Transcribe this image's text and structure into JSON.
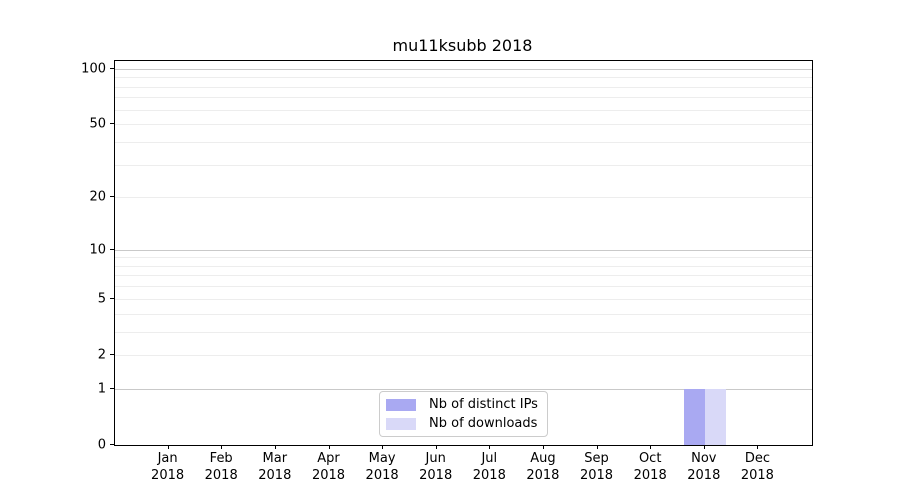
{
  "title": "mu11ksubb 2018",
  "colors": {
    "distinct_ips_bar": "#a9a9f2",
    "downloads_bar": "#d9d9f8",
    "grid_major": "#c9c9c9",
    "grid_minor": "#ededed",
    "spine": "#000000",
    "legend_border": "#cccccc",
    "text": "#000000",
    "background": "#ffffff"
  },
  "legend": {
    "items": [
      {
        "label": "Nb of distinct IPs",
        "color": "#a9a9f2"
      },
      {
        "label": "Nb of downloads",
        "color": "#d9d9f8"
      }
    ],
    "position": "lower center"
  },
  "chart_data": {
    "type": "bar",
    "title": "mu11ksubb 2018",
    "categories": [
      "Jan 2018",
      "Feb 2018",
      "Mar 2018",
      "Apr 2018",
      "May 2018",
      "Jun 2018",
      "Jul 2018",
      "Aug 2018",
      "Sep 2018",
      "Oct 2018",
      "Nov 2018",
      "Dec 2018"
    ],
    "series": [
      {
        "name": "Nb of distinct IPs",
        "color": "#a9a9f2",
        "values": [
          0,
          0,
          0,
          0,
          0,
          0,
          0,
          0,
          0,
          0,
          1,
          0
        ]
      },
      {
        "name": "Nb of downloads",
        "color": "#d9d9f8",
        "values": [
          0,
          0,
          0,
          0,
          0,
          0,
          0,
          0,
          0,
          0,
          1,
          0
        ]
      }
    ],
    "xlabel": "",
    "ylabel": "",
    "yscale": "log1p",
    "ylim": [
      0,
      110
    ],
    "y_ticks": [
      0,
      1,
      2,
      5,
      10,
      20,
      50,
      100
    ],
    "y_major_gridlines": [
      1,
      10,
      100
    ],
    "y_minor_gridlines": [
      2,
      3,
      4,
      5,
      6,
      7,
      8,
      9,
      20,
      30,
      40,
      50,
      60,
      70,
      80,
      90
    ],
    "grid": "horizontal",
    "legend_position": "lower center"
  }
}
